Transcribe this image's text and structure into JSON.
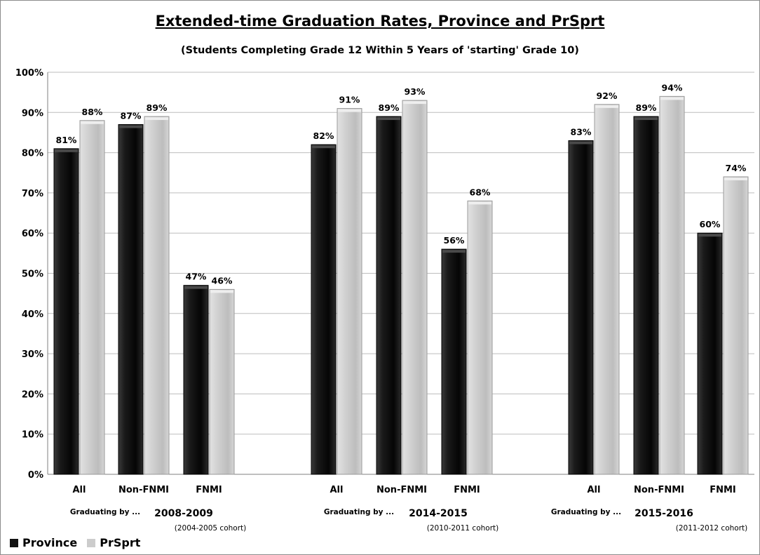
{
  "chart_data": {
    "type": "bar",
    "title": "Extended-time Graduation Rates, Province and PrSprt",
    "subtitle": "(Students Completing Grade 12 Within 5 Years of 'starting' Grade 10)",
    "ylim": [
      0,
      100
    ],
    "y_ticks": [
      "0%",
      "10%",
      "20%",
      "30%",
      "40%",
      "50%",
      "60%",
      "70%",
      "80%",
      "90%",
      "100%"
    ],
    "grid": true,
    "legend_position": "bottom-left",
    "groups": [
      {
        "prefix": "Graduating by ...",
        "year": "2008-2009",
        "cohort": "(2004-2005 cohort)",
        "categories": [
          "All",
          "Non-FNMI",
          "FNMI"
        ],
        "Province": [
          81,
          87,
          47
        ],
        "PrSprt": [
          88,
          89,
          46
        ],
        "Province_labels": [
          "81%",
          "87%",
          "47%"
        ],
        "PrSprt_labels": [
          "88%",
          "89%",
          "46%"
        ]
      },
      {
        "prefix": "Graduating by ...",
        "year": "2014-2015",
        "cohort": "(2010-2011 cohort)",
        "categories": [
          "All",
          "Non-FNMI",
          "FNMI"
        ],
        "Province": [
          82,
          89,
          56
        ],
        "PrSprt": [
          91,
          93,
          68
        ],
        "Province_labels": [
          "82%",
          "89%",
          "56%"
        ],
        "PrSprt_labels": [
          "91%",
          "93%",
          "68%"
        ]
      },
      {
        "prefix": "Graduating by ...",
        "year": "2015-2016",
        "cohort": "(2011-2012 cohort)",
        "categories": [
          "All",
          "Non-FNMI",
          "FNMI"
        ],
        "Province": [
          83,
          89,
          60
        ],
        "PrSprt": [
          92,
          94,
          74
        ],
        "Province_labels": [
          "83%",
          "89%",
          "60%"
        ],
        "PrSprt_labels": [
          "92%",
          "94%",
          "74%"
        ]
      }
    ],
    "series": [
      {
        "name": "Province",
        "color": "#111111"
      },
      {
        "name": "PrSprt",
        "color": "#cccccc"
      }
    ]
  }
}
